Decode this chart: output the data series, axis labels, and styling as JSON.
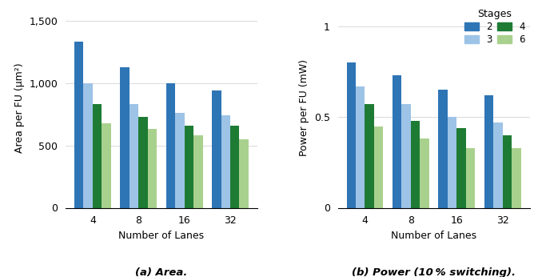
{
  "lanes": [
    4,
    8,
    16,
    32
  ],
  "area": {
    "stage2": [
      1330,
      1130,
      1000,
      940
    ],
    "stage3": [
      1000,
      830,
      760,
      740
    ],
    "stage4": [
      830,
      730,
      660,
      660
    ],
    "stage6": [
      680,
      630,
      580,
      550
    ]
  },
  "power": {
    "stage2": [
      0.8,
      0.73,
      0.65,
      0.62
    ],
    "stage3": [
      0.67,
      0.57,
      0.5,
      0.47
    ],
    "stage4": [
      0.57,
      0.48,
      0.44,
      0.4
    ],
    "stage6": [
      0.45,
      0.38,
      0.33,
      0.33
    ]
  },
  "colors": {
    "stage2": "#2E75B6",
    "stage3": "#9DC3E6",
    "stage4": "#1E7B34",
    "stage6": "#A9D18E"
  },
  "area_ylabel": "Area per FU (μm²)",
  "power_ylabel": "Power per FU (mW)",
  "xlabel": "Number of Lanes",
  "legend_title": "Stages",
  "caption_a": "(a) Area.",
  "caption_b": "(b) Power (10 % switching).",
  "area_ylim": [
    0,
    1600
  ],
  "area_yticks": [
    0,
    500,
    1000,
    1500
  ],
  "area_yticklabels": [
    "0",
    "500",
    "1,000",
    "1,500"
  ],
  "power_ylim": [
    0,
    1.1
  ],
  "power_yticks": [
    0,
    0.5,
    1
  ],
  "power_yticklabels": [
    "0",
    "0.5",
    "1"
  ],
  "bar_width": 0.2
}
